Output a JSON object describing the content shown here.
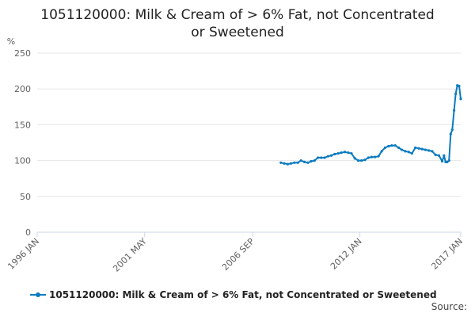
{
  "title_lines": [
    "1051120000: Milk & Cream of > 6% Fat, not Concentrated",
    "or Sweetened"
  ],
  "source_label": "Source:",
  "legend": {
    "label": "1051120000: Milk & Cream of > 6% Fat, not Concentrated or Sweetened"
  },
  "colors": {
    "series": "#0b7bbf",
    "grid": "#e6e6e6",
    "axis": "#ccd6eb",
    "tick_text": "#606060"
  },
  "chart_data": {
    "type": "line",
    "title": "1051120000: Milk & Cream of > 6% Fat, not Concentrated or Sweetened",
    "ylabel": "%",
    "ylim": [
      0,
      250
    ],
    "yticks": [
      0,
      50,
      100,
      150,
      200,
      250
    ],
    "xlim": [
      1996.0,
      2017.0
    ],
    "xticks": [
      {
        "label": "1996 JAN",
        "value": 1996.0
      },
      {
        "label": "2001 MAY",
        "value": 2001.33
      },
      {
        "label": "2006 SEP",
        "value": 2006.67
      },
      {
        "label": "2012 JAN",
        "value": 2012.0
      },
      {
        "label": "2017 JAN",
        "value": 2017.0
      }
    ],
    "grid": true,
    "legend_position": "bottom",
    "series": [
      {
        "name": "1051120000: Milk & Cream of > 6% Fat, not Concentrated or Sweetened",
        "x": [
          2008.08,
          2008.25,
          2008.42,
          2008.58,
          2008.75,
          2008.92,
          2009.08,
          2009.25,
          2009.42,
          2009.58,
          2009.75,
          2009.92,
          2010.08,
          2010.25,
          2010.42,
          2010.58,
          2010.75,
          2010.92,
          2011.08,
          2011.25,
          2011.42,
          2011.58,
          2011.75,
          2011.92,
          2012.08,
          2012.25,
          2012.42,
          2012.58,
          2012.75,
          2012.92,
          2013.08,
          2013.25,
          2013.42,
          2013.58,
          2013.75,
          2013.92,
          2014.08,
          2014.25,
          2014.42,
          2014.58,
          2014.75,
          2014.92,
          2015.08,
          2015.25,
          2015.42,
          2015.58,
          2015.75,
          2015.92,
          2016.08,
          2016.17,
          2016.25,
          2016.33,
          2016.42,
          2016.5,
          2016.58,
          2016.67,
          2016.75,
          2016.83,
          2016.92,
          2017.0
        ],
        "values": [
          97,
          96,
          95,
          96,
          97,
          97,
          100,
          98,
          97,
          99,
          100,
          104,
          104,
          104,
          106,
          107,
          109,
          110,
          111,
          112,
          111,
          110,
          103,
          100,
          100,
          101,
          104,
          105,
          105,
          106,
          113,
          118,
          120,
          121,
          121,
          118,
          115,
          113,
          112,
          110,
          118,
          117,
          116,
          115,
          114,
          113,
          108,
          107,
          99,
          107,
          98,
          98,
          100,
          137,
          143,
          170,
          193,
          205,
          204,
          186
        ]
      }
    ]
  }
}
